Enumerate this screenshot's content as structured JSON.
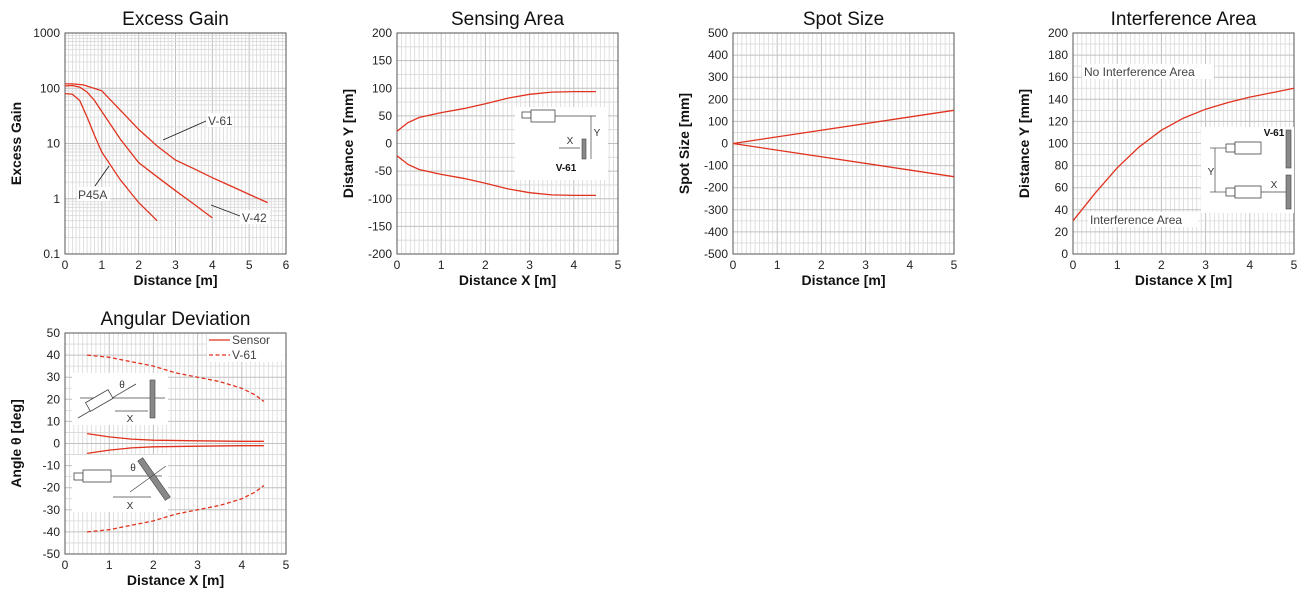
{
  "colors": {
    "series": "#e0321e",
    "grid": "#c0c0c0",
    "grid_minor": "#d8d8d8",
    "axis": "#555555"
  },
  "chart_data": [
    {
      "type": "line",
      "title": "Excess Gain",
      "xlabel": "Distance [m]",
      "ylabel": "Excess Gain",
      "xlim": [
        0,
        6
      ],
      "ylim": [
        0.1,
        1000
      ],
      "yscale": "log",
      "xticks": [
        "0",
        "1",
        "2",
        "3",
        "4",
        "5",
        "6"
      ],
      "yticks": [
        "0.1",
        "1",
        "10",
        "100",
        "1000"
      ],
      "grid": true,
      "series": [
        {
          "name": "P45A",
          "x": [
            0,
            0.2,
            0.4,
            0.6,
            0.8,
            1.0,
            1.5,
            2.0,
            2.5
          ],
          "y": [
            80,
            78,
            60,
            30,
            14,
            7,
            2.2,
            0.85,
            0.4
          ]
        },
        {
          "name": "V-42",
          "x": [
            0,
            0.2,
            0.4,
            0.6,
            0.8,
            1.0,
            1.5,
            2.0,
            2.5,
            3.0,
            3.5,
            4.0
          ],
          "y": [
            110,
            112,
            105,
            85,
            60,
            38,
            12,
            4.5,
            2.5,
            1.4,
            0.8,
            0.45
          ]
        },
        {
          "name": "V-61",
          "x": [
            0,
            0.2,
            0.5,
            1.0,
            1.5,
            2.0,
            2.5,
            3.0,
            3.5,
            4.0,
            4.5,
            5.0,
            5.5
          ],
          "y": [
            120,
            120,
            115,
            90,
            40,
            18,
            9,
            5,
            3.5,
            2.4,
            1.7,
            1.2,
            0.85
          ]
        }
      ],
      "annotations": [
        "V-61",
        "P45A",
        "V-42"
      ]
    },
    {
      "type": "line",
      "title": "Sensing Area",
      "xlabel": "Distance X [m]",
      "ylabel": "Distance Y [mm]",
      "xlim": [
        0,
        5
      ],
      "ylim": [
        -200,
        200
      ],
      "xticks": [
        "0",
        "1",
        "2",
        "3",
        "4",
        "5"
      ],
      "yticks": [
        "-200",
        "-150",
        "-100",
        "-50",
        "0",
        "50",
        "100",
        "150",
        "200"
      ],
      "grid": true,
      "series": [
        {
          "name": "",
          "x": [
            0,
            0.25,
            0.5,
            1.0,
            1.5,
            2.0,
            2.5,
            3.0,
            3.5,
            4.0,
            4.5
          ],
          "y": [
            22,
            38,
            47,
            56,
            63,
            72,
            82,
            89,
            93,
            94,
            94
          ]
        },
        {
          "name": "",
          "x": [
            0,
            0.25,
            0.5,
            1.0,
            1.5,
            2.0,
            2.5,
            3.0,
            3.5,
            4.0,
            4.5
          ],
          "y": [
            -22,
            -38,
            -47,
            -56,
            -63,
            -72,
            -82,
            -89,
            -93,
            -94,
            -94
          ]
        }
      ],
      "diagram_labels": [
        "X",
        "Y",
        "V-61"
      ]
    },
    {
      "type": "line",
      "title": "Spot Size",
      "xlabel": "Distance [m]",
      "ylabel": "Spot Size [mm]",
      "xlim": [
        0,
        5
      ],
      "ylim": [
        -500,
        500
      ],
      "xticks": [
        "0",
        "1",
        "2",
        "3",
        "4",
        "5"
      ],
      "yticks": [
        "-500",
        "-400",
        "-300",
        "-200",
        "-100",
        "0",
        "100",
        "200",
        "300",
        "400",
        "500"
      ],
      "grid": true,
      "series": [
        {
          "name": "",
          "x": [
            0,
            5
          ],
          "y": [
            0,
            150
          ]
        },
        {
          "name": "",
          "x": [
            0,
            5
          ],
          "y": [
            0,
            -150
          ]
        }
      ]
    },
    {
      "type": "line",
      "title": "Interference Area",
      "xlabel": "Distance X [m]",
      "ylabel": "Distance Y [mm]",
      "xlim": [
        0,
        5
      ],
      "ylim": [
        0,
        200
      ],
      "xticks": [
        "0",
        "1",
        "2",
        "3",
        "4",
        "5"
      ],
      "yticks": [
        "0",
        "20",
        "40",
        "60",
        "80",
        "100",
        "120",
        "140",
        "160",
        "180",
        "200"
      ],
      "grid": true,
      "series": [
        {
          "name": "",
          "x": [
            0,
            0.5,
            1.0,
            1.5,
            2.0,
            2.5,
            3.0,
            3.5,
            4.0,
            4.5,
            5.0
          ],
          "y": [
            30,
            55,
            78,
            97,
            112,
            123,
            131,
            137,
            142,
            146,
            150
          ]
        }
      ],
      "region_labels": [
        "No Interference Area",
        "Interference Area"
      ],
      "diagram_labels": [
        "V-61",
        "Y",
        "X"
      ]
    },
    {
      "type": "line",
      "title": "Angular Deviation",
      "xlabel": "Distance X [m]",
      "ylabel": "Angle θ [deg]",
      "xlim": [
        0,
        5
      ],
      "ylim": [
        -50,
        50
      ],
      "xticks": [
        "0",
        "1",
        "2",
        "3",
        "4",
        "5"
      ],
      "yticks": [
        "-50",
        "-40",
        "-30",
        "-20",
        "-10",
        "0",
        "10",
        "20",
        "30",
        "40",
        "50"
      ],
      "grid": true,
      "legend_position": "top-right",
      "series": [
        {
          "name": "Sensor",
          "style": "solid",
          "x": [
            0.5,
            1.0,
            1.5,
            2.0,
            3.0,
            4.0,
            4.5
          ],
          "y": [
            4.5,
            3,
            2,
            1.5,
            1.2,
            1,
            1
          ]
        },
        {
          "name": "",
          "style": "solid",
          "x": [
            0.5,
            1.0,
            1.5,
            2.0,
            3.0,
            4.0,
            4.5
          ],
          "y": [
            -4.5,
            -3,
            -2,
            -1.5,
            -1.2,
            -1,
            -1
          ]
        },
        {
          "name": "V-61",
          "style": "dashed",
          "x": [
            0.5,
            1.0,
            1.5,
            2.0,
            2.5,
            3.0,
            3.5,
            4.0,
            4.3,
            4.5
          ],
          "y": [
            40,
            39,
            37,
            35,
            32,
            30,
            28,
            25,
            22,
            19
          ]
        },
        {
          "name": "",
          "style": "dashed",
          "x": [
            0.5,
            1.0,
            1.5,
            2.0,
            2.5,
            3.0,
            3.5,
            4.0,
            4.3,
            4.5
          ],
          "y": [
            -40,
            -39,
            -37,
            -35,
            -32,
            -30,
            -28,
            -25,
            -22,
            -19
          ]
        }
      ],
      "diagram_labels": [
        "θ",
        "X"
      ]
    }
  ]
}
